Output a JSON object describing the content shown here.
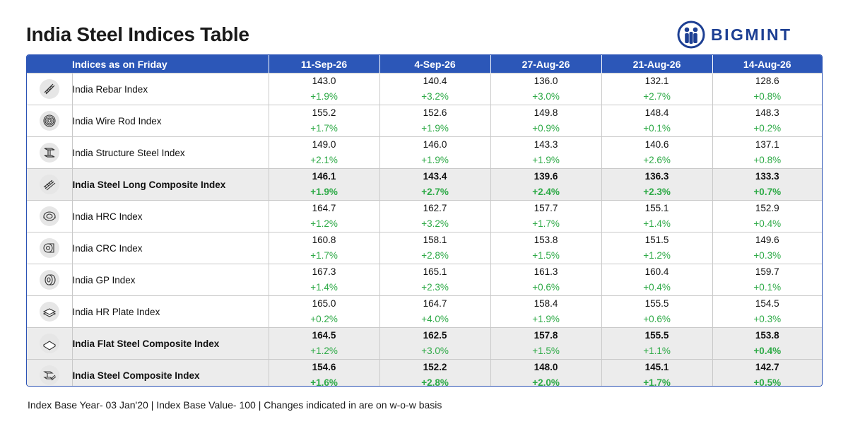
{
  "title": "India Steel Indices Table",
  "brand": {
    "name": "BIGMINT",
    "color": "#1d3f93"
  },
  "header": {
    "label": "Indices as on Friday",
    "dates": [
      "11-Sep-26",
      "4-Sep-26",
      "27-Aug-26",
      "21-Aug-26",
      "14-Aug-26"
    ]
  },
  "colors": {
    "header_bg": "#2c57b8",
    "positive": "#2eaa47",
    "composite_bg": "#ececec"
  },
  "rows": [
    {
      "name": "India Rebar Index",
      "icon": "rebar-icon",
      "composite": false,
      "values": [
        "143.0",
        "140.4",
        "136.0",
        "132.1",
        "128.6"
      ],
      "changes": [
        "+1.9%",
        "+3.2%",
        "+3.0%",
        "+2.7%",
        "+0.8%"
      ]
    },
    {
      "name": "India Wire Rod Index",
      "icon": "wire-rod-coil-icon",
      "composite": false,
      "values": [
        "155.2",
        "152.6",
        "149.8",
        "148.4",
        "148.3"
      ],
      "changes": [
        "+1.7%",
        "+1.9%",
        "+0.9%",
        "+0.1%",
        "+0.2%"
      ]
    },
    {
      "name": "India Structure Steel Index",
      "icon": "i-beam-icon",
      "composite": false,
      "values": [
        "149.0",
        "146.0",
        "143.3",
        "140.6",
        "137.1"
      ],
      "changes": [
        "+2.1%",
        "+1.9%",
        "+1.9%",
        "+2.6%",
        "+0.8%"
      ]
    },
    {
      "name": "India Steel Long Composite Index",
      "icon": "rebar-bundle-icon",
      "composite": true,
      "values": [
        "146.1",
        "143.4",
        "139.6",
        "136.3",
        "133.3"
      ],
      "changes": [
        "+1.9%",
        "+2.7%",
        "+2.4%",
        "+2.3%",
        "+0.7%"
      ]
    },
    {
      "name": "India HRC Index",
      "icon": "hot-rolled-coil-icon",
      "composite": false,
      "values": [
        "164.7",
        "162.7",
        "157.7",
        "155.1",
        "152.9"
      ],
      "changes": [
        "+1.2%",
        "+3.2%",
        "+1.7%",
        "+1.4%",
        "+0.4%"
      ]
    },
    {
      "name": "India CRC Index",
      "icon": "cold-rolled-coil-icon",
      "composite": false,
      "values": [
        "160.8",
        "158.1",
        "153.8",
        "151.5",
        "149.6"
      ],
      "changes": [
        "+1.7%",
        "+2.8%",
        "+1.5%",
        "+1.2%",
        "+0.3%"
      ]
    },
    {
      "name": "India GP Index",
      "icon": "galvanized-coil-icon",
      "composite": false,
      "values": [
        "167.3",
        "165.1",
        "161.3",
        "160.4",
        "159.7"
      ],
      "changes": [
        "+1.4%",
        "+2.3%",
        "+0.6%",
        "+0.4%",
        "+0.1%"
      ]
    },
    {
      "name": "India HR Plate Index",
      "icon": "plate-stack-icon",
      "composite": false,
      "values": [
        "165.0",
        "164.7",
        "158.4",
        "155.5",
        "154.5"
      ],
      "changes": [
        "+0.2%",
        "+4.0%",
        "+1.9%",
        "+0.6%",
        "+0.3%"
      ]
    },
    {
      "name": "India Flat Steel Composite Index",
      "icon": "flat-plate-icon",
      "composite": true,
      "values": [
        "164.5",
        "162.5",
        "157.8",
        "155.5",
        "153.8"
      ],
      "changes": [
        "+1.2%",
        "+3.0%",
        "+1.5%",
        "+1.1%",
        "+0.4%"
      ],
      "plain_changes": [
        true,
        true,
        true,
        true,
        false
      ]
    },
    {
      "name": "India Steel Composite Index",
      "icon": "steel-composite-icon",
      "composite": true,
      "values": [
        "154.6",
        "152.2",
        "148.0",
        "145.1",
        "142.7"
      ],
      "changes": [
        "+1.6%",
        "+2.8%",
        "+2.0%",
        "+1.7%",
        "+0.5%"
      ]
    }
  ],
  "footer": "Index Base Year- 03 Jan'20 | Index Base Value- 100 | Changes indicated in are on w-o-w basis"
}
